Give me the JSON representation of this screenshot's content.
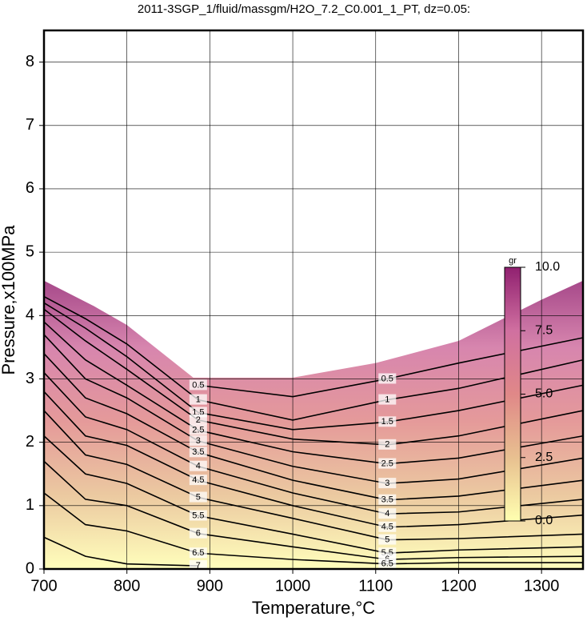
{
  "chart_data": {
    "type": "contour",
    "title": "2011-3SGP_1/fluid/massgm/H2O_7.2_C0.001_1_PT, dz=0.05:",
    "xlabel": "Temperature,°C",
    "ylabel": "Pressure,x100MPa",
    "xlim": [
      700,
      1350
    ],
    "ylim": [
      0,
      8.5
    ],
    "xticks": [
      700,
      800,
      900,
      1000,
      1100,
      1200,
      1300
    ],
    "yticks": [
      0,
      1,
      2,
      3,
      4,
      5,
      6,
      7,
      8
    ],
    "grid": true,
    "line_color": "#000000",
    "field_boundary": {
      "x": [
        700,
        760,
        800,
        880,
        1000,
        1100,
        1200,
        1300,
        1350,
        1350,
        700
      ],
      "y": [
        4.55,
        4.15,
        3.85,
        3.02,
        3.02,
        3.25,
        3.6,
        4.25,
        4.55,
        0,
        0
      ]
    },
    "x": [
      700,
      750,
      800,
      886,
      1000,
      1114,
      1200,
      1350
    ],
    "series": [
      {
        "name": "0.5",
        "values": [
          null,
          null,
          null,
          2.9,
          2.72,
          3.0,
          3.25,
          3.65
        ]
      },
      {
        "name": "1",
        "values": [
          4.3,
          3.95,
          3.55,
          2.67,
          2.35,
          2.67,
          2.85,
          3.3
        ]
      },
      {
        "name": "1.5",
        "values": [
          4.2,
          3.8,
          3.35,
          2.47,
          2.2,
          2.32,
          2.5,
          2.9
        ]
      },
      {
        "name": "2",
        "values": [
          4.1,
          3.6,
          3.15,
          2.35,
          2.05,
          1.96,
          2.1,
          2.5
        ]
      },
      {
        "name": "2.5",
        "values": [
          3.9,
          3.3,
          2.9,
          2.19,
          1.85,
          1.66,
          1.75,
          2.1
        ]
      },
      {
        "name": "3",
        "values": [
          3.7,
          3.0,
          2.7,
          2.02,
          1.62,
          1.35,
          1.42,
          1.75
        ]
      },
      {
        "name": "3.5",
        "values": [
          3.4,
          2.7,
          2.45,
          1.84,
          1.4,
          1.09,
          1.15,
          1.4
        ]
      },
      {
        "name": "4",
        "values": [
          3.1,
          2.4,
          2.2,
          1.62,
          1.2,
          0.87,
          0.9,
          1.1
        ]
      },
      {
        "name": "4.5",
        "values": [
          2.8,
          2.1,
          1.95,
          1.4,
          1.0,
          0.66,
          0.7,
          0.85
        ]
      },
      {
        "name": "5",
        "values": [
          2.5,
          1.8,
          1.65,
          1.13,
          0.8,
          0.46,
          0.48,
          0.55
        ]
      },
      {
        "name": "5.5",
        "values": [
          2.1,
          1.5,
          1.35,
          0.84,
          0.55,
          0.25,
          0.3,
          0.35
        ]
      },
      {
        "name": "6",
        "values": [
          1.7,
          1.1,
          1.0,
          0.56,
          0.35,
          0.15,
          0.18,
          0.2
        ]
      },
      {
        "name": "6.5",
        "values": [
          1.2,
          0.7,
          0.6,
          0.25,
          0.15,
          0.08,
          0.1,
          0.1
        ]
      },
      {
        "name": "7",
        "values": [
          0.5,
          0.2,
          0.08,
          0.05,
          null,
          null,
          null,
          null
        ]
      }
    ],
    "colorbar": {
      "label": "gr",
      "lim": [
        0,
        10
      ],
      "ticks": [
        {
          "value": 0,
          "label": "0.0"
        },
        {
          "value": 2.5,
          "label": "2.5"
        },
        {
          "value": 5,
          "label": "5.0"
        },
        {
          "value": 7.5,
          "label": "7.5"
        },
        {
          "value": 10,
          "label": "10.0"
        }
      ],
      "colors": [
        "#ffffb0",
        "#e8c090",
        "#e08888",
        "#d070a0",
        "#902070"
      ]
    }
  }
}
